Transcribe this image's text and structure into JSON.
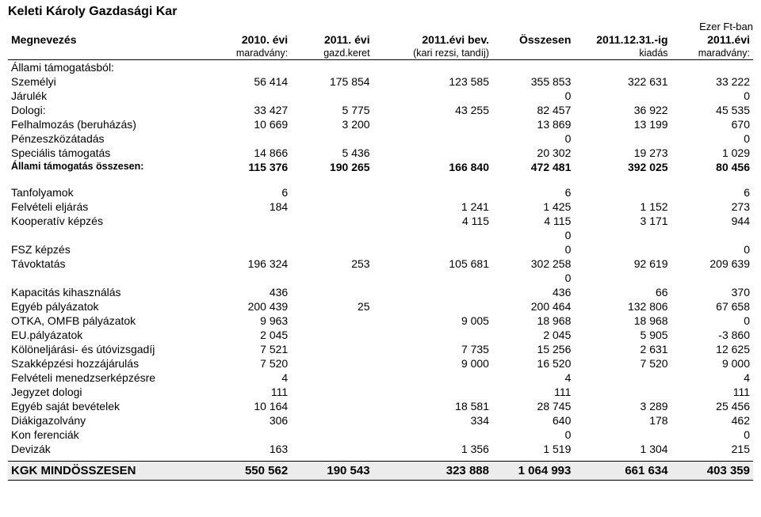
{
  "title": "Keleti Károly Gazdasági Kar",
  "unit_label": "Ezer Ft-ban",
  "columns": {
    "megnevezes": "Megnevezés",
    "c1_top": "2010. évi",
    "c1_sub": "maradvány:",
    "c2_top": "2011. évi",
    "c2_sub": "gazd.keret",
    "c3_top": "2011.évi bev.",
    "c3_sub": "(kari rezsi, tandíj)",
    "c4_top": "Összesen",
    "c4_sub": "",
    "c5_top": "2011.12.31.-ig",
    "c5_sub": "kiadás",
    "c6_top": "2011.évi",
    "c6_sub": "maradvány:"
  },
  "section_header": "Állami támogatásból:",
  "rows1": [
    {
      "label": "Személyi",
      "v": [
        "56 414",
        "175 854",
        "123 585",
        "355 853",
        "322 631",
        "33 222"
      ]
    },
    {
      "label": "Járulék",
      "v": [
        "",
        "",
        "",
        "0",
        "",
        "0"
      ]
    },
    {
      "label": "Dologi:",
      "v": [
        "33 427",
        "5 775",
        "43 255",
        "82 457",
        "36 922",
        "45 535"
      ]
    },
    {
      "label": "Felhalmozás (beruházás)",
      "v": [
        "10 669",
        "3 200",
        "",
        "13 869",
        "13 199",
        "670"
      ]
    },
    {
      "label": "Pénzeszközátadás",
      "v": [
        "",
        "",
        "",
        "0",
        "",
        "0"
      ]
    },
    {
      "label": "Speciális támogatás",
      "v": [
        "14 866",
        "5 436",
        "",
        "20 302",
        "19 273",
        "1 029"
      ]
    }
  ],
  "subtotal": {
    "label": "Állami támogatás összesen:",
    "v": [
      "115 376",
      "190 265",
      "166 840",
      "472 481",
      "392 025",
      "80 456"
    ]
  },
  "rows2": [
    {
      "label": "Tanfolyamok",
      "v": [
        "6",
        "",
        "",
        "6",
        "",
        "6"
      ]
    },
    {
      "label": "Felvételi eljárás",
      "v": [
        "184",
        "",
        "1 241",
        "1 425",
        "1 152",
        "273"
      ]
    },
    {
      "label": "Kooperatív képzés",
      "v": [
        "",
        "",
        "4 115",
        "4 115",
        "3 171",
        "944"
      ]
    },
    {
      "label": "",
      "v": [
        "",
        "",
        "",
        "0",
        "",
        ""
      ]
    },
    {
      "label": "FSZ képzés",
      "v": [
        "",
        "",
        "",
        "0",
        "",
        "0"
      ]
    },
    {
      "label": "Távoktatás",
      "v": [
        "196 324",
        "253",
        "105 681",
        "302 258",
        "92 619",
        "209 639"
      ]
    },
    {
      "label": "",
      "v": [
        "",
        "",
        "",
        "0",
        "",
        ""
      ]
    },
    {
      "label": "Kapacitás kihasználás",
      "v": [
        "436",
        "",
        "",
        "436",
        "66",
        "370"
      ]
    },
    {
      "label": "Egyéb pályázatok",
      "v": [
        "200 439",
        "25",
        "",
        "200 464",
        "132 806",
        "67 658"
      ]
    },
    {
      "label": "OTKA, OMFB pályázatok",
      "v": [
        "9 963",
        "",
        "9 005",
        "18 968",
        "18 968",
        "0"
      ]
    },
    {
      "label": "EU.pályázatok",
      "v": [
        "2 045",
        "",
        "",
        "2 045",
        "5 905",
        "-3 860"
      ]
    },
    {
      "label": "Kölöneljárási- és útóvizsgadíj",
      "v": [
        "7 521",
        "",
        "7 735",
        "15 256",
        "2 631",
        "12 625"
      ]
    },
    {
      "label": "Szakképzési hozzájárulás",
      "v": [
        "7 520",
        "",
        "9 000",
        "16 520",
        "7 520",
        "9 000"
      ]
    },
    {
      "label": "Felvételi menedzserképzésre",
      "v": [
        "4",
        "",
        "",
        "4",
        "",
        "4"
      ]
    },
    {
      "label": "Jegyzet dologi",
      "v": [
        "111",
        "",
        "",
        "111",
        "",
        "111"
      ]
    },
    {
      "label": "Egyéb saját bevételek",
      "v": [
        "10 164",
        "",
        "18 581",
        "28 745",
        "3 289",
        "25 456"
      ]
    },
    {
      "label": "Diákigazolvány",
      "v": [
        "306",
        "",
        "334",
        "640",
        "178",
        "462"
      ]
    },
    {
      "label": "Kon ferenciák",
      "v": [
        "",
        "",
        "",
        "0",
        "",
        "0"
      ]
    },
    {
      "label": "Devizák",
      "v": [
        "163",
        "",
        "1 356",
        "1 519",
        "1 304",
        "215"
      ]
    }
  ],
  "grand_total": {
    "label": "KGK  MINDÖSSZESEN",
    "v": [
      "550 562",
      "190 543",
      "323 888",
      "1 064 993",
      "661 634",
      "403 359"
    ]
  },
  "col_widths_pct": [
    28,
    10,
    11,
    16,
    11,
    13,
    11
  ]
}
